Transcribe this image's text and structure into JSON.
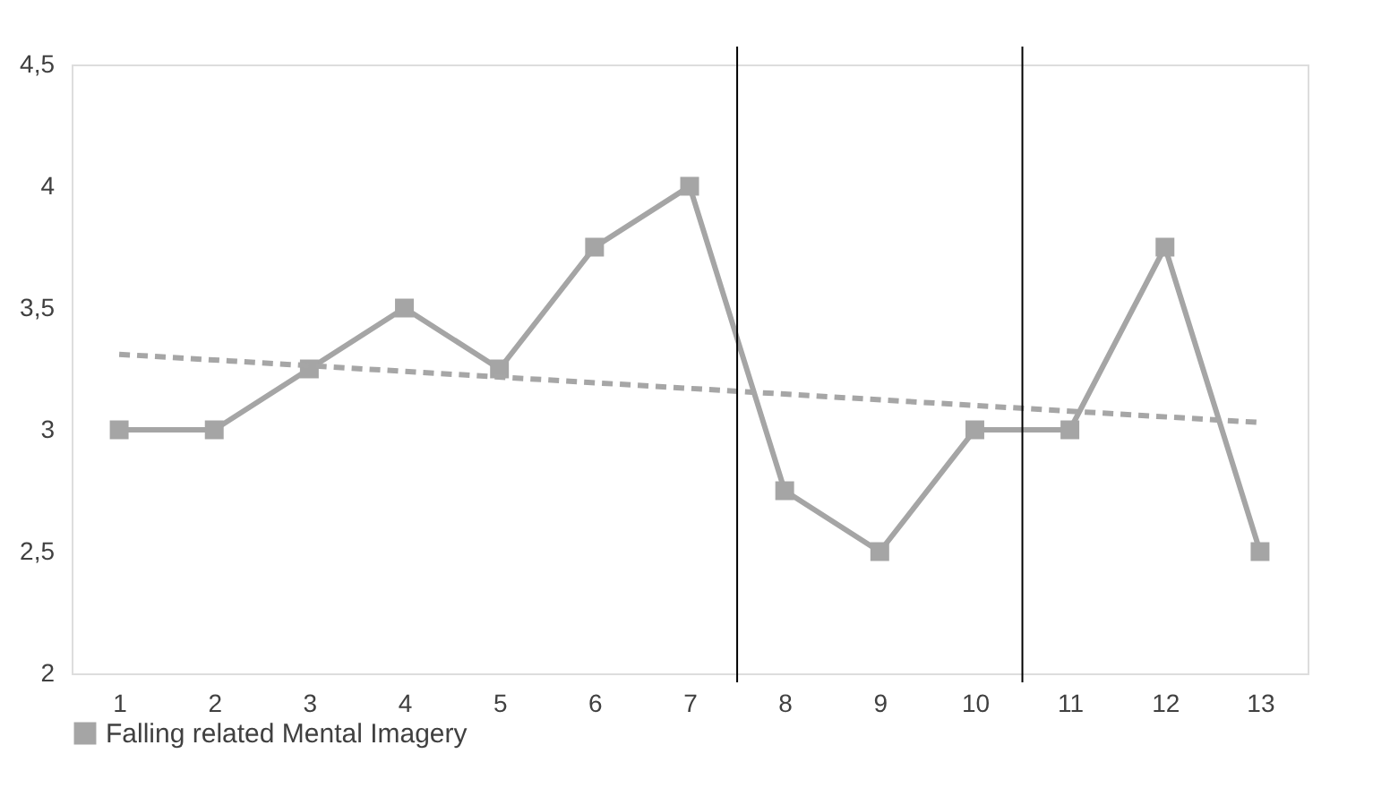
{
  "chart_data": {
    "type": "line",
    "x": [
      1,
      2,
      3,
      4,
      5,
      6,
      7,
      8,
      9,
      10,
      11,
      12,
      13
    ],
    "series": [
      {
        "name": "Falling related Mental Imagery",
        "color": "#a5a5a5",
        "values": [
          3,
          3,
          3.25,
          3.5,
          3.25,
          3.75,
          4,
          2.75,
          2.5,
          3,
          3,
          3.75,
          2.5
        ],
        "marker": "square",
        "line_style": "solid"
      },
      {
        "type": "line",
        "x": [
          1,
          13
        ],
        "color": "#a6a6a6",
        "values": [
          3.31,
          3.03
        ],
        "marker": "none",
        "line_style": "dashed"
      }
    ],
    "xlim": [
      0.5,
      13.5
    ],
    "xticks": [
      1,
      2,
      3,
      4,
      5,
      6,
      7,
      8,
      9,
      10,
      11,
      12,
      13
    ],
    "ylim": [
      2,
      4.5
    ],
    "yticks": [
      2,
      {
        "value": 2.5,
        "label": "2,5"
      },
      3,
      {
        "value": 3.5,
        "label": "3,5"
      },
      4,
      {
        "value": 4.5,
        "label": "4,5"
      }
    ],
    "ref_lines": [
      {
        "axis": "x",
        "value": 7.5,
        "color": "#000000"
      },
      {
        "axis": "x",
        "value": 10.5,
        "color": "#000000"
      }
    ],
    "grid": false,
    "legend": "bottom"
  }
}
